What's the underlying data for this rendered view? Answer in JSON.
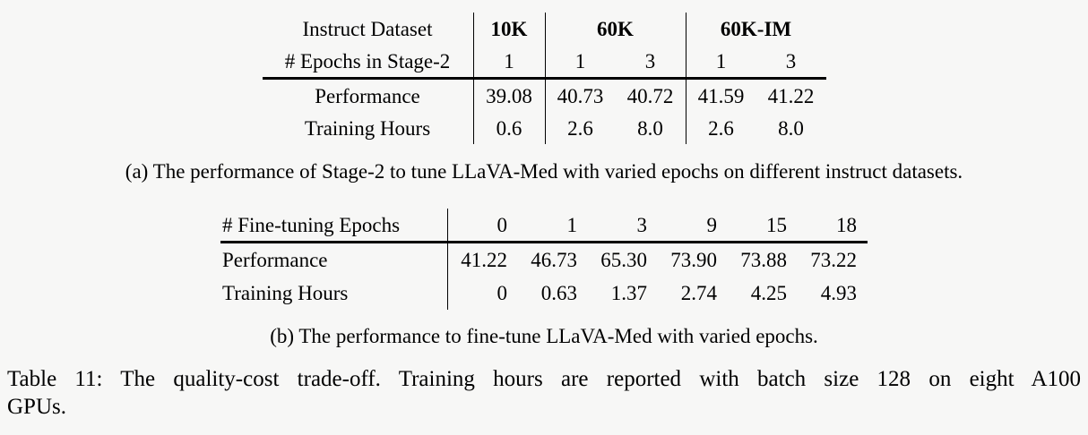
{
  "page": {
    "background_color": "#f7f7f6",
    "text_color": "#000000",
    "rule_color": "#000000"
  },
  "table_a": {
    "header_row1": {
      "label": "Instruct Dataset",
      "groups": [
        {
          "label": "10K",
          "span": 1
        },
        {
          "label": "60K",
          "span": 2
        },
        {
          "label": "60K-IM",
          "span": 2
        }
      ]
    },
    "header_row2": {
      "label": "# Epochs in Stage-2",
      "values": [
        "1",
        "1",
        "3",
        "1",
        "3"
      ]
    },
    "rows": [
      {
        "label": "Performance",
        "values": [
          "39.08",
          "40.73",
          "40.72",
          "41.59",
          "41.22"
        ]
      },
      {
        "label": "Training Hours",
        "values": [
          "0.6",
          "2.6",
          "8.0",
          "2.6",
          "8.0"
        ]
      }
    ],
    "caption": "(a) The performance of Stage-2 to tune LLaVA-Med with varied epochs on different instruct datasets."
  },
  "table_b": {
    "header": {
      "label": "# Fine-tuning Epochs",
      "values": [
        "0",
        "1",
        "3",
        "9",
        "15",
        "18"
      ]
    },
    "rows": [
      {
        "label": "Performance",
        "values": [
          "41.22",
          "46.73",
          "65.30",
          "73.90",
          "73.88",
          "73.22"
        ]
      },
      {
        "label": "Training Hours",
        "values": [
          "0",
          "0.63",
          "1.37",
          "2.74",
          "4.25",
          "4.93"
        ]
      }
    ],
    "caption": "(b) The performance to fine-tune LLaVA-Med with varied epochs."
  },
  "main_caption": {
    "lines": [
      "Table 11: The quality-cost trade-off. Training hours are reported with batch size 128 on eight A100",
      "GPUs."
    ]
  }
}
